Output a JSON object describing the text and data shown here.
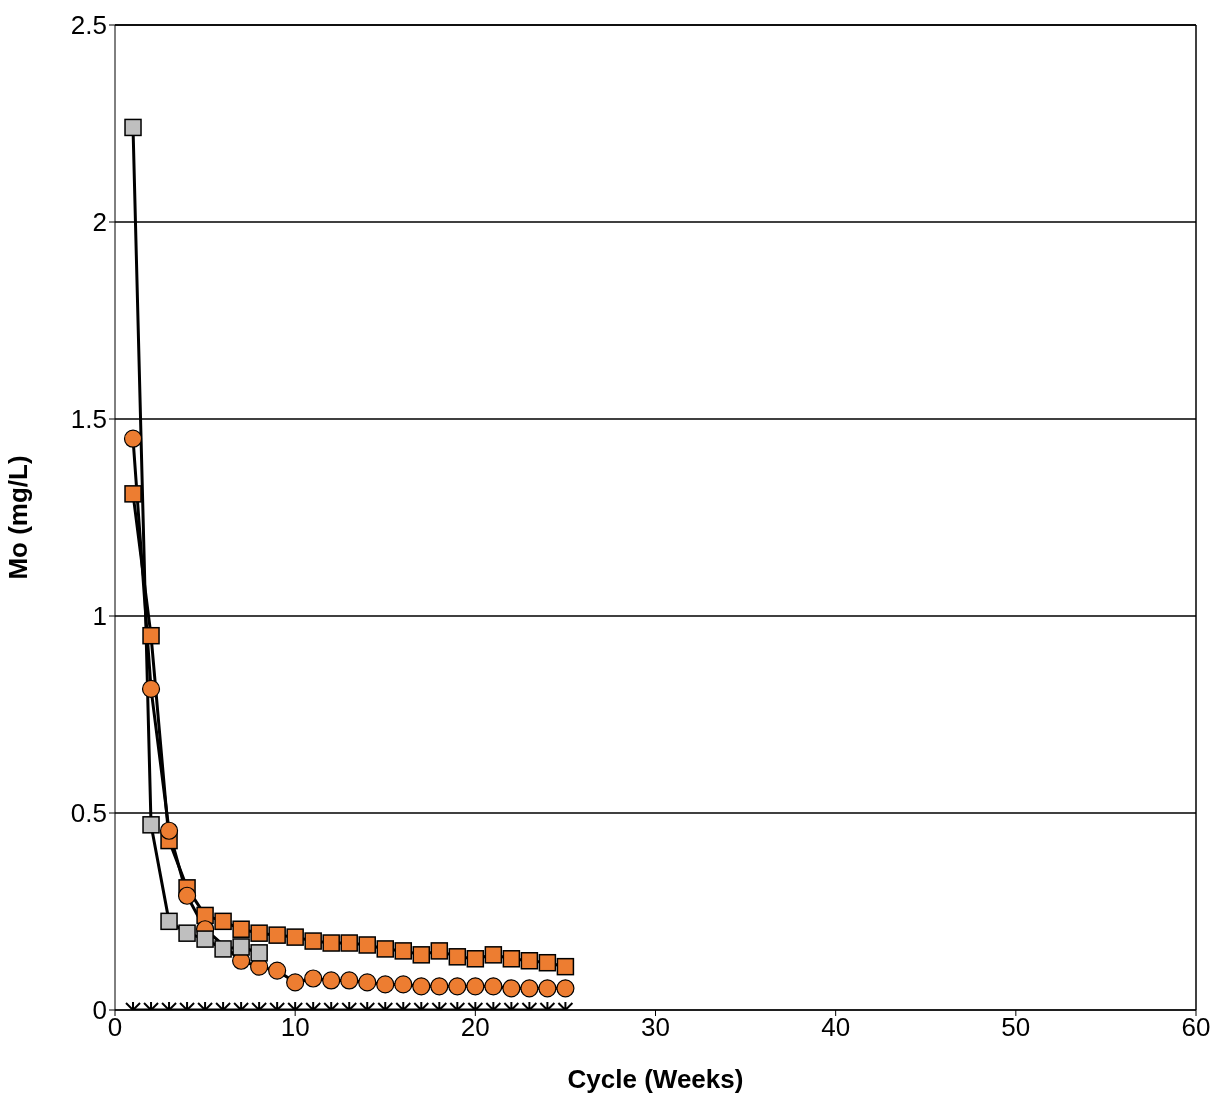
{
  "chart_data": {
    "type": "line",
    "xlabel": "Cycle (Weeks)",
    "ylabel": "Mo (mg/L)",
    "x": [
      1,
      2,
      3,
      4,
      5,
      6,
      7,
      8,
      9,
      10,
      11,
      12,
      13,
      14,
      15,
      16,
      17,
      18,
      19,
      20,
      21,
      22,
      23,
      24,
      25
    ],
    "series": [
      {
        "color": "#ed7d31",
        "marker": "square",
        "values": [
          1.31,
          0.95,
          0.43,
          0.31,
          0.24,
          0.225,
          0.205,
          0.195,
          0.19,
          0.185,
          0.175,
          0.17,
          0.17,
          0.165,
          0.155,
          0.15,
          0.14,
          0.15,
          0.135,
          0.13,
          0.14,
          0.13,
          0.125,
          0.12,
          0.11
        ]
      },
      {
        "color": "#ed7d31",
        "marker": "circle",
        "values": [
          1.45,
          0.815,
          0.455,
          0.29,
          0.205,
          null,
          0.125,
          0.11,
          0.1,
          0.07,
          0.08,
          0.075,
          0.075,
          0.07,
          0.065,
          0.065,
          0.06,
          0.06,
          0.06,
          0.06,
          0.06,
          0.055,
          0.055,
          0.055,
          0.055
        ]
      },
      {
        "color": "#bfbfbf",
        "marker": "square",
        "x": [
          1,
          2,
          3,
          4,
          5,
          6,
          7,
          8
        ],
        "values": [
          2.24,
          0.47,
          0.225,
          0.195,
          0.18,
          0.155,
          0.16,
          0.145
        ]
      },
      {
        "color": "#000000",
        "marker": "cross",
        "values": [
          0,
          0,
          0,
          0,
          0,
          0,
          0,
          0,
          0,
          0,
          0,
          0,
          0,
          0,
          0,
          0,
          0,
          0,
          0,
          0,
          0,
          0,
          0,
          0,
          0
        ]
      }
    ],
    "xlim": [
      0,
      60
    ],
    "xticks": [
      0,
      10,
      20,
      30,
      40,
      50,
      60
    ],
    "ylim": [
      0,
      2.5
    ],
    "yticks": [
      0,
      {
        "value": 0.5,
        "label": "0.5"
      },
      1,
      {
        "value": 1.5,
        "label": "1.5"
      },
      2,
      {
        "value": 2.5,
        "label": "2.5"
      }
    ],
    "grid": "y",
    "line_style": "solid"
  }
}
